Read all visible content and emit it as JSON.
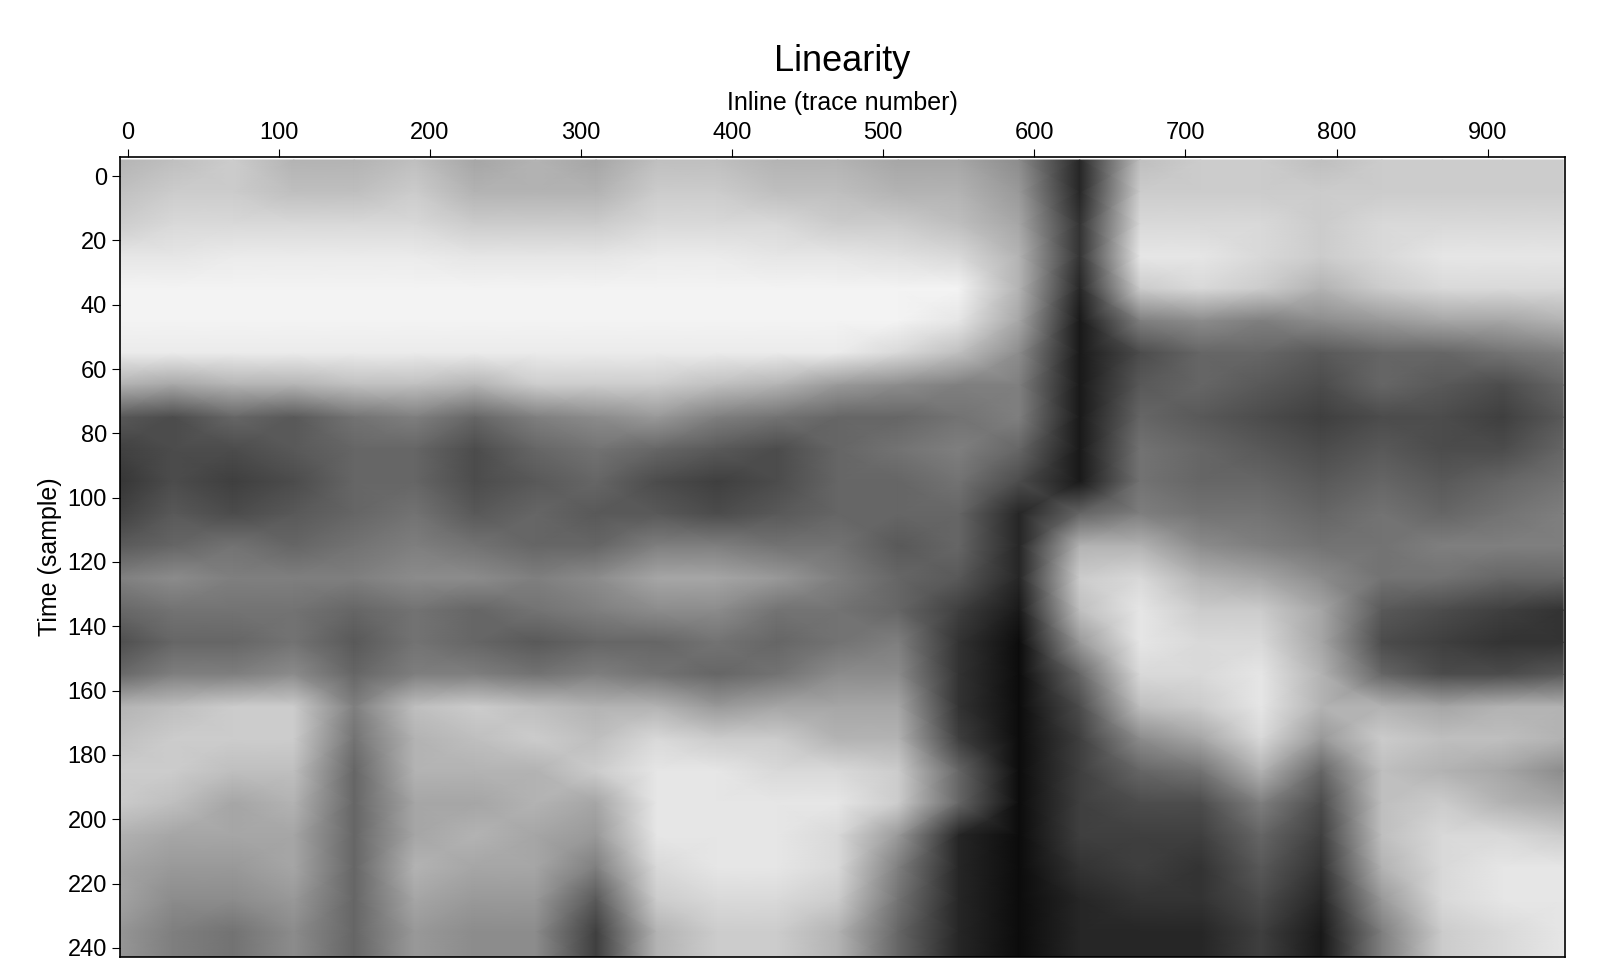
{
  "chart_data": {
    "type": "heatmap",
    "title": "Linearity",
    "x_label": "Inline (trace number)",
    "y_label": "Time (sample)",
    "x": [
      -10,
      30,
      70,
      110,
      150,
      190,
      230,
      270,
      310,
      350,
      390,
      430,
      470,
      510,
      550,
      590,
      630,
      670,
      710,
      750,
      790,
      830,
      870,
      910,
      950
    ],
    "y": [
      -5,
      5,
      15,
      25,
      35,
      45,
      55,
      65,
      75,
      85,
      95,
      105,
      115,
      125,
      135,
      145,
      155,
      165,
      175,
      185,
      195,
      205,
      215,
      225,
      235,
      245
    ],
    "cells": [
      [
        0.3,
        0.25,
        0.2,
        0.3,
        0.3,
        0.25,
        0.35,
        0.3,
        0.35,
        0.25,
        0.25,
        0.3,
        0.3,
        0.35,
        0.35,
        0.45,
        0.85,
        0.25,
        0.2,
        0.2,
        0.25,
        0.2,
        0.2,
        0.2,
        0.2
      ],
      [
        0.25,
        0.2,
        0.2,
        0.25,
        0.25,
        0.2,
        0.3,
        0.3,
        0.3,
        0.2,
        0.2,
        0.25,
        0.25,
        0.3,
        0.3,
        0.4,
        0.85,
        0.2,
        0.2,
        0.2,
        0.2,
        0.2,
        0.2,
        0.2,
        0.2
      ],
      [
        0.2,
        0.15,
        0.15,
        0.15,
        0.15,
        0.15,
        0.2,
        0.2,
        0.2,
        0.15,
        0.15,
        0.15,
        0.2,
        0.2,
        0.25,
        0.35,
        0.8,
        0.15,
        0.15,
        0.15,
        0.2,
        0.15,
        0.15,
        0.15,
        0.15
      ],
      [
        0.1,
        0.1,
        0.08,
        0.08,
        0.08,
        0.08,
        0.1,
        0.1,
        0.1,
        0.08,
        0.08,
        0.1,
        0.1,
        0.12,
        0.15,
        0.3,
        0.8,
        0.1,
        0.1,
        0.15,
        0.2,
        0.15,
        0.1,
        0.1,
        0.1
      ],
      [
        0.05,
        0.05,
        0.05,
        0.05,
        0.05,
        0.05,
        0.05,
        0.05,
        0.05,
        0.05,
        0.05,
        0.05,
        0.05,
        0.05,
        0.05,
        0.3,
        0.85,
        0.2,
        0.15,
        0.2,
        0.3,
        0.2,
        0.15,
        0.15,
        0.15
      ],
      [
        0.05,
        0.05,
        0.05,
        0.05,
        0.05,
        0.05,
        0.05,
        0.05,
        0.05,
        0.05,
        0.05,
        0.05,
        0.05,
        0.05,
        0.1,
        0.35,
        0.9,
        0.5,
        0.45,
        0.5,
        0.45,
        0.4,
        0.35,
        0.35,
        0.3
      ],
      [
        0.08,
        0.08,
        0.08,
        0.08,
        0.08,
        0.08,
        0.08,
        0.08,
        0.08,
        0.08,
        0.08,
        0.08,
        0.08,
        0.15,
        0.25,
        0.45,
        0.9,
        0.7,
        0.6,
        0.6,
        0.65,
        0.6,
        0.6,
        0.55,
        0.5
      ],
      [
        0.3,
        0.35,
        0.3,
        0.3,
        0.25,
        0.25,
        0.3,
        0.2,
        0.2,
        0.2,
        0.25,
        0.3,
        0.4,
        0.45,
        0.5,
        0.5,
        0.9,
        0.65,
        0.6,
        0.65,
        0.7,
        0.6,
        0.65,
        0.7,
        0.6
      ],
      [
        0.65,
        0.7,
        0.6,
        0.65,
        0.55,
        0.5,
        0.6,
        0.5,
        0.45,
        0.4,
        0.5,
        0.55,
        0.6,
        0.6,
        0.55,
        0.5,
        0.9,
        0.6,
        0.65,
        0.7,
        0.75,
        0.7,
        0.7,
        0.75,
        0.65
      ],
      [
        0.75,
        0.7,
        0.7,
        0.65,
        0.6,
        0.6,
        0.7,
        0.6,
        0.55,
        0.6,
        0.65,
        0.7,
        0.6,
        0.55,
        0.5,
        0.6,
        0.9,
        0.55,
        0.6,
        0.65,
        0.7,
        0.65,
        0.7,
        0.7,
        0.6
      ],
      [
        0.8,
        0.7,
        0.75,
        0.7,
        0.6,
        0.6,
        0.7,
        0.65,
        0.6,
        0.7,
        0.75,
        0.7,
        0.6,
        0.6,
        0.55,
        0.7,
        0.9,
        0.55,
        0.6,
        0.6,
        0.65,
        0.6,
        0.65,
        0.6,
        0.55
      ],
      [
        0.75,
        0.65,
        0.7,
        0.65,
        0.6,
        0.55,
        0.65,
        0.6,
        0.65,
        0.65,
        0.7,
        0.65,
        0.6,
        0.6,
        0.6,
        0.85,
        0.6,
        0.5,
        0.55,
        0.55,
        0.6,
        0.55,
        0.6,
        0.55,
        0.5
      ],
      [
        0.65,
        0.6,
        0.55,
        0.6,
        0.55,
        0.5,
        0.55,
        0.6,
        0.6,
        0.5,
        0.5,
        0.55,
        0.55,
        0.65,
        0.6,
        0.85,
        0.3,
        0.3,
        0.45,
        0.5,
        0.55,
        0.55,
        0.5,
        0.5,
        0.5
      ],
      [
        0.5,
        0.45,
        0.5,
        0.5,
        0.5,
        0.45,
        0.45,
        0.5,
        0.45,
        0.35,
        0.35,
        0.4,
        0.5,
        0.6,
        0.65,
        0.85,
        0.2,
        0.15,
        0.3,
        0.35,
        0.45,
        0.55,
        0.55,
        0.6,
        0.6
      ],
      [
        0.6,
        0.55,
        0.55,
        0.55,
        0.6,
        0.55,
        0.6,
        0.55,
        0.5,
        0.45,
        0.45,
        0.55,
        0.55,
        0.6,
        0.75,
        0.9,
        0.25,
        0.1,
        0.2,
        0.2,
        0.35,
        0.65,
        0.7,
        0.75,
        0.8
      ],
      [
        0.7,
        0.6,
        0.6,
        0.55,
        0.65,
        0.55,
        0.6,
        0.65,
        0.6,
        0.6,
        0.55,
        0.6,
        0.55,
        0.5,
        0.8,
        0.95,
        0.4,
        0.1,
        0.15,
        0.15,
        0.35,
        0.7,
        0.75,
        0.8,
        0.8
      ],
      [
        0.6,
        0.5,
        0.5,
        0.45,
        0.6,
        0.5,
        0.5,
        0.55,
        0.5,
        0.55,
        0.6,
        0.55,
        0.45,
        0.45,
        0.8,
        0.95,
        0.6,
        0.15,
        0.15,
        0.1,
        0.3,
        0.6,
        0.7,
        0.7,
        0.65
      ],
      [
        0.3,
        0.25,
        0.2,
        0.2,
        0.5,
        0.25,
        0.2,
        0.25,
        0.3,
        0.3,
        0.4,
        0.35,
        0.35,
        0.35,
        0.8,
        0.95,
        0.7,
        0.25,
        0.2,
        0.1,
        0.3,
        0.3,
        0.35,
        0.3,
        0.3
      ],
      [
        0.25,
        0.2,
        0.2,
        0.2,
        0.55,
        0.3,
        0.25,
        0.2,
        0.25,
        0.15,
        0.2,
        0.2,
        0.3,
        0.3,
        0.75,
        0.95,
        0.75,
        0.45,
        0.35,
        0.15,
        0.4,
        0.2,
        0.25,
        0.25,
        0.3
      ],
      [
        0.2,
        0.2,
        0.25,
        0.25,
        0.6,
        0.3,
        0.3,
        0.3,
        0.2,
        0.1,
        0.1,
        0.15,
        0.15,
        0.2,
        0.6,
        0.95,
        0.75,
        0.6,
        0.55,
        0.3,
        0.6,
        0.25,
        0.3,
        0.35,
        0.45
      ],
      [
        0.2,
        0.25,
        0.35,
        0.3,
        0.6,
        0.35,
        0.35,
        0.3,
        0.35,
        0.1,
        0.1,
        0.1,
        0.1,
        0.2,
        0.6,
        0.95,
        0.75,
        0.7,
        0.7,
        0.5,
        0.7,
        0.25,
        0.2,
        0.3,
        0.35
      ],
      [
        0.3,
        0.35,
        0.35,
        0.35,
        0.6,
        0.35,
        0.3,
        0.35,
        0.4,
        0.1,
        0.1,
        0.1,
        0.15,
        0.4,
        0.85,
        0.95,
        0.75,
        0.75,
        0.75,
        0.6,
        0.75,
        0.25,
        0.15,
        0.15,
        0.2
      ],
      [
        0.35,
        0.4,
        0.4,
        0.35,
        0.6,
        0.3,
        0.35,
        0.35,
        0.5,
        0.15,
        0.1,
        0.1,
        0.15,
        0.5,
        0.85,
        0.95,
        0.8,
        0.75,
        0.8,
        0.65,
        0.8,
        0.3,
        0.15,
        0.1,
        0.1
      ],
      [
        0.35,
        0.45,
        0.45,
        0.4,
        0.6,
        0.35,
        0.4,
        0.4,
        0.65,
        0.2,
        0.15,
        0.15,
        0.2,
        0.55,
        0.85,
        0.95,
        0.85,
        0.8,
        0.8,
        0.7,
        0.85,
        0.4,
        0.15,
        0.1,
        0.1
      ],
      [
        0.4,
        0.5,
        0.55,
        0.45,
        0.6,
        0.4,
        0.45,
        0.45,
        0.75,
        0.3,
        0.2,
        0.2,
        0.3,
        0.6,
        0.85,
        0.95,
        0.85,
        0.85,
        0.85,
        0.75,
        0.9,
        0.5,
        0.2,
        0.15,
        0.1
      ],
      [
        0.4,
        0.5,
        0.55,
        0.45,
        0.6,
        0.4,
        0.45,
        0.45,
        0.75,
        0.3,
        0.2,
        0.2,
        0.3,
        0.6,
        0.85,
        0.95,
        0.85,
        0.85,
        0.85,
        0.75,
        0.9,
        0.5,
        0.2,
        0.15,
        0.1
      ]
    ],
    "color_range": [
      0,
      1
    ],
    "xlim": [
      -5,
      951
    ],
    "ylim": [
      243,
      -6
    ],
    "xticks": [
      0,
      100,
      200,
      300,
      400,
      500,
      600,
      700,
      800,
      900
    ],
    "yticks": [
      0,
      20,
      40,
      60,
      80,
      100,
      120,
      140,
      160,
      180,
      200,
      220,
      240
    ]
  }
}
